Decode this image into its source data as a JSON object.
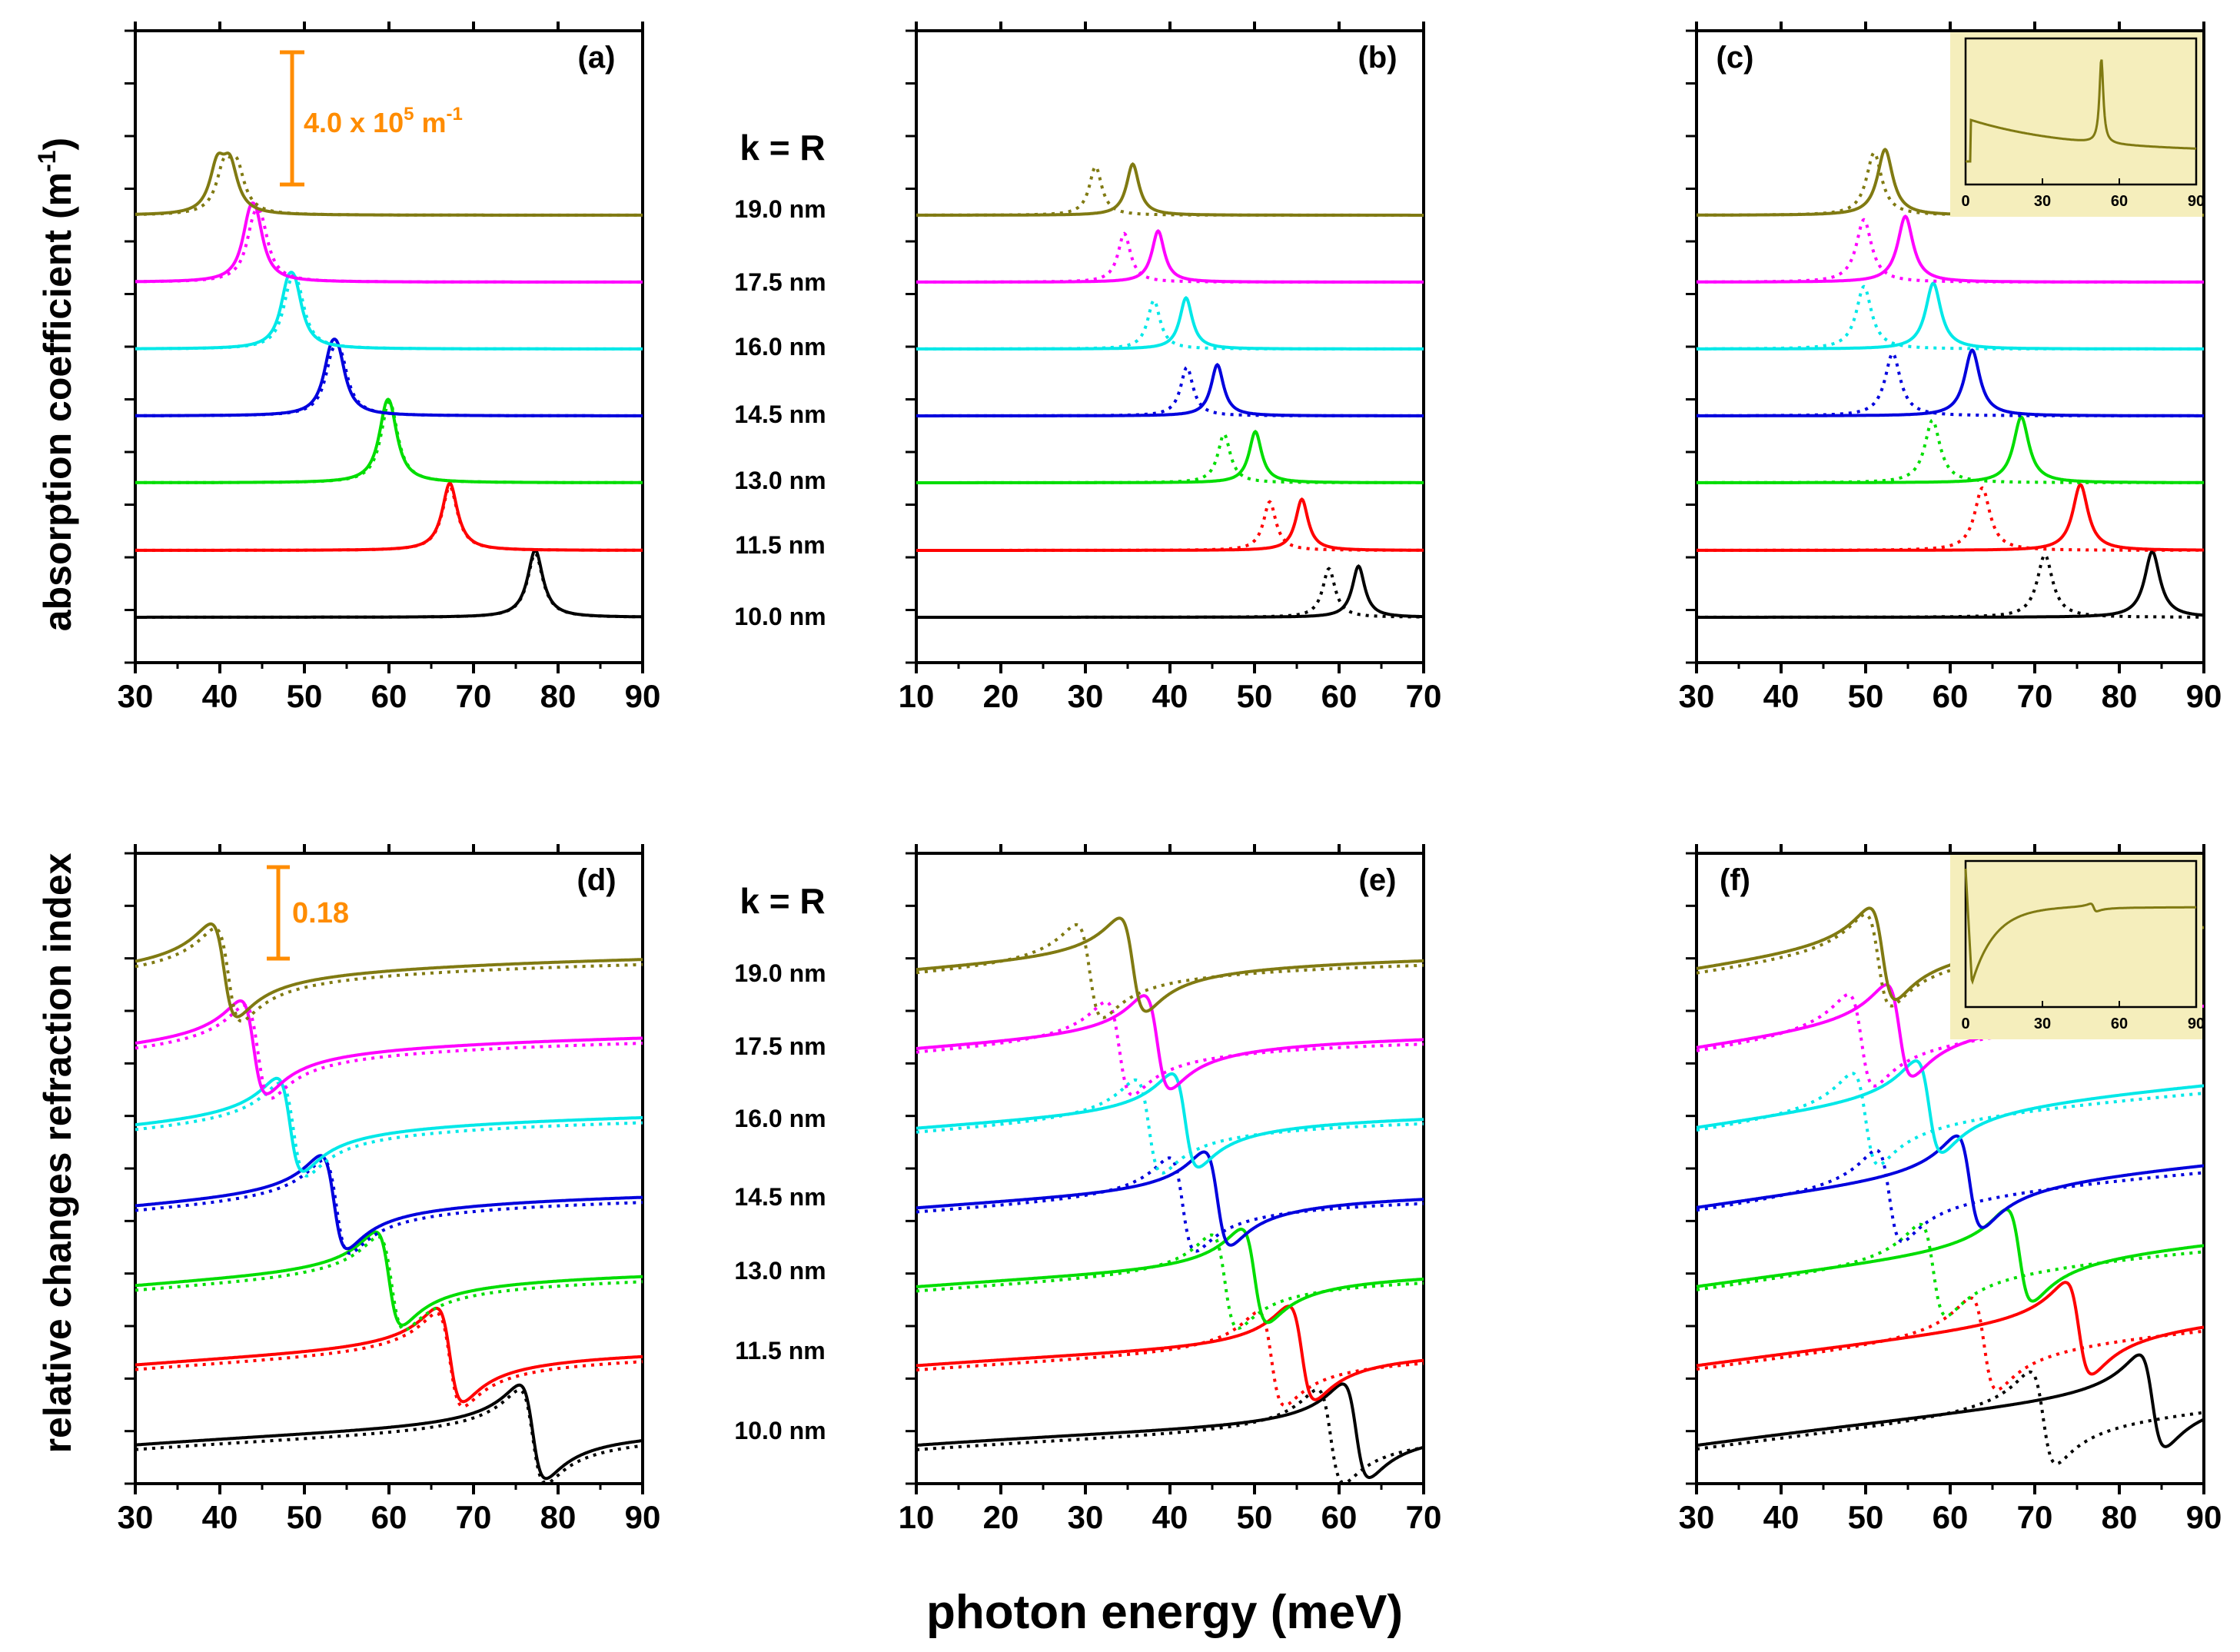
{
  "figure": {
    "ylabel_top": "absorption coefficient (m",
    "ylabel_top_sup": "-1",
    "ylabel_top_end": ")",
    "ylabel_bottom": "relative changes refraction index",
    "xlabel": "photon energy (meV)",
    "k_label": "k = R",
    "radius_labels": [
      "19.0 nm",
      "17.5 nm",
      "16.0 nm",
      "14.5 nm",
      "13.0 nm",
      "11.5 nm",
      "10.0 nm"
    ],
    "scalebar_abs_text": "4.0 x 10",
    "scalebar_abs_sup": "5",
    "scalebar_abs_unit": " m",
    "scalebar_abs_unit_sup": "-1",
    "scalebar_ri_text": "0.18",
    "colors": {
      "series": [
        "#000000",
        "#ff0000",
        "#00dd00",
        "#0000dd",
        "#00e8e8",
        "#ff00ff",
        "#807a12"
      ],
      "scalebar": "#ff8c00",
      "inset_bg": "#f5eebc"
    }
  },
  "chart_data": [
    {
      "panel": "(a)",
      "type": "line",
      "quantity": "absorption",
      "xlim": [
        30,
        90
      ],
      "x_ticks": [
        "30",
        "40",
        "50",
        "60",
        "70",
        "80",
        "90"
      ],
      "series": [
        {
          "name": "10.0 nm",
          "solid_peaks": [
            77.3
          ],
          "dotted_peaks": [
            77.3
          ],
          "amplitude": 0.92
        },
        {
          "name": "11.5 nm",
          "solid_peaks": [
            67.2
          ],
          "dotted_peaks": [
            67.2
          ],
          "amplitude": 0.92
        },
        {
          "name": "13.0 nm",
          "solid_peaks": [
            59.6,
            60.2
          ],
          "dotted_peaks": [
            59.8,
            60.3
          ],
          "amplitude": 0.92
        },
        {
          "name": "14.5 nm",
          "solid_peaks": [
            53.1,
            54.0
          ],
          "dotted_peaks": [
            53.3,
            54.3
          ],
          "amplitude": 0.92
        },
        {
          "name": "16.0 nm",
          "solid_peaks": [
            48.0,
            48.9
          ],
          "dotted_peaks": [
            48.3,
            49.2
          ],
          "amplitude": 0.92
        },
        {
          "name": "17.5 nm",
          "solid_peaks": [
            43.5,
            44.3
          ],
          "dotted_peaks": [
            44.0,
            44.9
          ],
          "amplitude": 0.92
        },
        {
          "name": "19.0 nm",
          "solid_peaks": [
            39.7,
            41.2
          ],
          "dotted_peaks": [
            40.5,
            42.0
          ],
          "amplitude": 0.92
        }
      ]
    },
    {
      "panel": "(b)",
      "type": "line",
      "quantity": "absorption",
      "xlim": [
        10,
        70
      ],
      "x_ticks": [
        "10",
        "20",
        "30",
        "40",
        "50",
        "60",
        "70"
      ],
      "series": [
        {
          "name": "10.0 nm",
          "solid_peaks": [
            62.3
          ],
          "dotted_peaks": [
            58.8
          ],
          "amplitude": 0.7
        },
        {
          "name": "11.5 nm",
          "solid_peaks": [
            55.6
          ],
          "dotted_peaks": [
            51.8
          ],
          "amplitude": 0.7
        },
        {
          "name": "13.0 nm",
          "solid_peaks": [
            50.1
          ],
          "dotted_peaks": [
            46.4
          ],
          "amplitude": 0.7
        },
        {
          "name": "14.5 nm",
          "solid_peaks": [
            45.6
          ],
          "dotted_peaks": [
            42.0
          ],
          "amplitude": 0.7
        },
        {
          "name": "16.0 nm",
          "solid_peaks": [
            41.9
          ],
          "dotted_peaks": [
            38.1
          ],
          "amplitude": 0.7
        },
        {
          "name": "17.5 nm",
          "solid_peaks": [
            38.6
          ],
          "dotted_peaks": [
            34.6
          ],
          "amplitude": 0.7
        },
        {
          "name": "19.0 nm",
          "solid_peaks": [
            35.6
          ],
          "dotted_peaks": [
            31.2
          ],
          "amplitude": 0.7
        }
      ]
    },
    {
      "panel": "(c)",
      "type": "line",
      "quantity": "absorption",
      "xlim": [
        30,
        90
      ],
      "x_ticks": [
        "30",
        "40",
        "50",
        "60",
        "70",
        "80",
        "90"
      ],
      "series": [
        {
          "name": "10.0 nm",
          "solid_peaks": [
            83.9
          ],
          "dotted_peaks": [
            71.2
          ],
          "amplitude": 0.9
        },
        {
          "name": "11.5 nm",
          "solid_peaks": [
            75.4
          ],
          "dotted_peaks": [
            63.8
          ],
          "amplitude": 0.9
        },
        {
          "name": "13.0 nm",
          "solid_peaks": [
            68.4
          ],
          "dotted_peaks": [
            57.9
          ],
          "amplitude": 0.9
        },
        {
          "name": "14.5 nm",
          "solid_peaks": [
            62.6
          ],
          "dotted_peaks": [
            53.2
          ],
          "amplitude": 0.9
        },
        {
          "name": "16.0 nm",
          "solid_peaks": [
            58.0
          ],
          "dotted_peaks": [
            49.8
          ],
          "amplitude": 0.9
        },
        {
          "name": "17.5 nm",
          "solid_peaks": [
            54.7
          ],
          "dotted_peaks": [
            49.8
          ],
          "amplitude": 0.9
        },
        {
          "name": "19.0 nm",
          "solid_peaks": [
            52.3
          ],
          "dotted_peaks": [
            51.0
          ],
          "amplitude": 0.9
        }
      ],
      "inset": {
        "x_ticks": [
          "0",
          "30",
          "60",
          "90"
        ],
        "peak_x": 53
      }
    },
    {
      "panel": "(d)",
      "type": "line",
      "quantity": "refraction index",
      "xlim": [
        30,
        90
      ],
      "x_ticks": [
        "30",
        "40",
        "50",
        "60",
        "70",
        "80",
        "90"
      ],
      "series": [
        {
          "name": "10.0 nm",
          "solid_resonance": 77.0,
          "dotted_resonance": 77.0
        },
        {
          "name": "11.5 nm",
          "solid_resonance": 67.2,
          "dotted_resonance": 67.2
        },
        {
          "name": "13.0 nm",
          "solid_resonance": 60.0,
          "dotted_resonance": 60.3
        },
        {
          "name": "14.5 nm",
          "solid_resonance": 53.5,
          "dotted_resonance": 53.8
        },
        {
          "name": "16.0 nm",
          "solid_resonance": 48.3,
          "dotted_resonance": 48.7
        },
        {
          "name": "17.5 nm",
          "solid_resonance": 44.0,
          "dotted_resonance": 44.5
        },
        {
          "name": "19.0 nm",
          "solid_resonance": 40.5,
          "dotted_resonance": 41.0
        }
      ]
    },
    {
      "panel": "(e)",
      "type": "line",
      "quantity": "refraction index",
      "xlim": [
        10,
        70
      ],
      "x_ticks": [
        "10",
        "20",
        "30",
        "40",
        "50",
        "60",
        "70"
      ],
      "series": [
        {
          "name": "10.0 nm",
          "solid_resonance": 62.0,
          "dotted_resonance": 59.0
        },
        {
          "name": "11.5 nm",
          "solid_resonance": 55.6,
          "dotted_resonance": 52.0
        },
        {
          "name": "13.0 nm",
          "solid_resonance": 50.0,
          "dotted_resonance": 46.5
        },
        {
          "name": "14.5 nm",
          "solid_resonance": 45.6,
          "dotted_resonance": 41.5
        },
        {
          "name": "16.0 nm",
          "solid_resonance": 41.8,
          "dotted_resonance": 37.5
        },
        {
          "name": "17.5 nm",
          "solid_resonance": 38.5,
          "dotted_resonance": 34.0
        },
        {
          "name": "19.0 nm",
          "solid_resonance": 35.6,
          "dotted_resonance": 30.5
        }
      ]
    },
    {
      "panel": "(f)",
      "type": "line",
      "quantity": "refraction index",
      "xlim": [
        30,
        90
      ],
      "x_ticks": [
        "30",
        "40",
        "50",
        "60",
        "70",
        "80",
        "90"
      ],
      "series": [
        {
          "name": "10.0 nm",
          "solid_resonance": 83.9,
          "dotted_resonance": 71.0
        },
        {
          "name": "11.5 nm",
          "solid_resonance": 75.2,
          "dotted_resonance": 64.0
        },
        {
          "name": "13.0 nm",
          "solid_resonance": 68.2,
          "dotted_resonance": 58.0
        },
        {
          "name": "14.5 nm",
          "solid_resonance": 62.3,
          "dotted_resonance": 52.8
        },
        {
          "name": "16.0 nm",
          "solid_resonance": 57.5,
          "dotted_resonance": 50.0
        },
        {
          "name": "17.5 nm",
          "solid_resonance": 54.0,
          "dotted_resonance": 49.5
        },
        {
          "name": "19.0 nm",
          "solid_resonance": 52.0,
          "dotted_resonance": 51.5
        }
      ],
      "inset": {
        "x_ticks": [
          "0",
          "30",
          "60",
          "90"
        ],
        "resonance_x": 50
      }
    }
  ]
}
